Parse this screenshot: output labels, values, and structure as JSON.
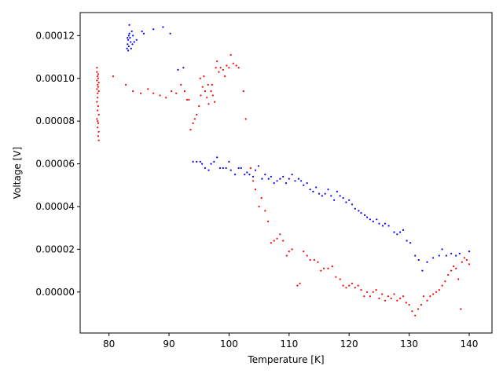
{
  "chart_data": {
    "type": "scatter",
    "title": "",
    "xlabel": "Temperature [K]",
    "ylabel": "Voltage [V]",
    "xlim": [
      75.2,
      143.8
    ],
    "ylim": [
      -1.92e-05,
      0.0001308
    ],
    "grid": false,
    "xticks": [
      80,
      90,
      100,
      110,
      120,
      130,
      140
    ],
    "xtick_labels": [
      "80",
      "90",
      "100",
      "110",
      "120",
      "130",
      "140"
    ],
    "yticks": [
      0,
      2e-05,
      4e-05,
      6e-05,
      8e-05,
      0.0001,
      0.00012
    ],
    "ytick_labels": [
      "0.00000",
      "0.00002",
      "0.00004",
      "0.00006",
      "0.00008",
      "0.00010",
      "0.00012"
    ],
    "series": [
      {
        "color": "#0000ff",
        "points": [
          [
            83.0,
            0.000114
          ],
          [
            83.1,
            0.000116
          ],
          [
            83.2,
            0.000118
          ],
          [
            83.3,
            0.00012
          ],
          [
            83.4,
            0.000121
          ],
          [
            83.5,
            0.000119
          ],
          [
            83.2,
            0.000113
          ],
          [
            83.6,
            0.000117
          ],
          [
            83.8,
            0.000122
          ],
          [
            83.4,
            0.000125
          ],
          [
            84.0,
            0.00012
          ],
          [
            83.1,
            0.000119
          ],
          [
            83.7,
            0.000114
          ],
          [
            83.9,
            0.000116
          ],
          [
            83.3,
            0.000115
          ],
          [
            84.2,
            0.000117
          ],
          [
            84.6,
            0.000118
          ],
          [
            85.5,
            0.000122
          ],
          [
            85.8,
            0.000121
          ],
          [
            87.4,
            0.000123
          ],
          [
            89.0,
            0.000124
          ],
          [
            90.2,
            0.000121
          ],
          [
            91.5,
            0.000104
          ],
          [
            92.4,
            0.000105
          ],
          [
            94.0,
            6.1e-05
          ],
          [
            94.6,
            6.1e-05
          ],
          [
            95.2,
            6.1e-05
          ],
          [
            95.5,
            6e-05
          ],
          [
            96.0,
            5.8e-05
          ],
          [
            96.6,
            5.7e-05
          ],
          [
            97.0,
            6e-05
          ],
          [
            97.5,
            6.1e-05
          ],
          [
            98.0,
            6.3e-05
          ],
          [
            98.5,
            5.8e-05
          ],
          [
            99.0,
            5.8e-05
          ],
          [
            99.5,
            5.8e-05
          ],
          [
            100.0,
            6.1e-05
          ],
          [
            100.3,
            5.7e-05
          ],
          [
            101.0,
            5.5e-05
          ],
          [
            101.6,
            5.8e-05
          ],
          [
            102.0,
            5.8e-05
          ],
          [
            102.6,
            5.5e-05
          ],
          [
            103.0,
            5.6e-05
          ],
          [
            103.4,
            5.5e-05
          ],
          [
            104.0,
            5.4e-05
          ],
          [
            104.4,
            5.7e-05
          ],
          [
            104.9,
            5.9e-05
          ],
          [
            105.5,
            5.3e-05
          ],
          [
            106.0,
            5.5e-05
          ],
          [
            106.6,
            5.3e-05
          ],
          [
            107.0,
            5.4e-05
          ],
          [
            107.5,
            5.1e-05
          ],
          [
            108.0,
            5.2e-05
          ],
          [
            108.5,
            5.3e-05
          ],
          [
            109.0,
            5.4e-05
          ],
          [
            109.5,
            5.1e-05
          ],
          [
            110.0,
            5.3e-05
          ],
          [
            110.5,
            5.5e-05
          ],
          [
            111.0,
            5.2e-05
          ],
          [
            111.6,
            5.3e-05
          ],
          [
            112.0,
            5.2e-05
          ],
          [
            112.4,
            5e-05
          ],
          [
            113.0,
            5.1e-05
          ],
          [
            113.5,
            4.8e-05
          ],
          [
            114.0,
            4.7e-05
          ],
          [
            114.5,
            4.9e-05
          ],
          [
            115.0,
            4.6e-05
          ],
          [
            115.5,
            4.5e-05
          ],
          [
            116.0,
            4.6e-05
          ],
          [
            116.5,
            4.8e-05
          ],
          [
            117.0,
            4.5e-05
          ],
          [
            117.5,
            4.3e-05
          ],
          [
            118.0,
            4.7e-05
          ],
          [
            118.5,
            4.5e-05
          ],
          [
            119.0,
            4.4e-05
          ],
          [
            119.5,
            4.2e-05
          ],
          [
            120.0,
            4.3e-05
          ],
          [
            120.5,
            4.1e-05
          ],
          [
            121.0,
            3.9e-05
          ],
          [
            121.6,
            3.8e-05
          ],
          [
            122.0,
            3.7e-05
          ],
          [
            122.6,
            3.6e-05
          ],
          [
            123.0,
            3.5e-05
          ],
          [
            123.5,
            3.4e-05
          ],
          [
            124.0,
            3.3e-05
          ],
          [
            124.6,
            3.4e-05
          ],
          [
            125.0,
            3.2e-05
          ],
          [
            125.6,
            3.1e-05
          ],
          [
            126.0,
            3.2e-05
          ],
          [
            126.6,
            3.1e-05
          ],
          [
            127.5,
            2.8e-05
          ],
          [
            128.0,
            2.7e-05
          ],
          [
            128.5,
            2.8e-05
          ],
          [
            129.0,
            2.9e-05
          ],
          [
            129.6,
            2.4e-05
          ],
          [
            130.2,
            2.3e-05
          ],
          [
            131.0,
            1.7e-05
          ],
          [
            131.6,
            1.5e-05
          ],
          [
            132.2,
            1e-05
          ],
          [
            133.0,
            1.4e-05
          ],
          [
            134.0,
            1.6e-05
          ],
          [
            135.0,
            1.7e-05
          ],
          [
            135.5,
            2e-05
          ],
          [
            136.2,
            1.7e-05
          ],
          [
            137.0,
            1.8e-05
          ],
          [
            137.8,
            1.7e-05
          ],
          [
            138.4,
            1.8e-05
          ],
          [
            140.0,
            1.9e-05
          ]
        ]
      },
      {
        "color": "#ff0000",
        "points": [
          [
            78.0,
            0.000103
          ],
          [
            78.1,
            0.000101
          ],
          [
            78.2,
            0.0001
          ],
          [
            78.0,
            9.9e-05
          ],
          [
            78.3,
            9.8e-05
          ],
          [
            78.1,
            9.7e-05
          ],
          [
            78.2,
            9.6e-05
          ],
          [
            78.0,
            9.5e-05
          ],
          [
            78.3,
            9.4e-05
          ],
          [
            78.1,
            9.3e-05
          ],
          [
            78.2,
            0.000102
          ],
          [
            78.0,
            0.000105
          ],
          [
            78.1,
            9.1e-05
          ],
          [
            78.0,
            8.9e-05
          ],
          [
            78.2,
            8.7e-05
          ],
          [
            78.1,
            8.5e-05
          ],
          [
            78.3,
            8.3e-05
          ],
          [
            78.0,
            8.1e-05
          ],
          [
            78.2,
            7.9e-05
          ],
          [
            78.1,
            7.7e-05
          ],
          [
            78.3,
            7.5e-05
          ],
          [
            78.2,
            7.3e-05
          ],
          [
            78.3,
            7.1e-05
          ],
          [
            78.1,
            8e-05
          ],
          [
            80.7,
            0.000101
          ],
          [
            82.8,
            9.7e-05
          ],
          [
            84.0,
            9.4e-05
          ],
          [
            85.3,
            9.3e-05
          ],
          [
            86.5,
            9.5e-05
          ],
          [
            87.4,
            9.3e-05
          ],
          [
            88.5,
            9.2e-05
          ],
          [
            89.5,
            9.1e-05
          ],
          [
            90.4,
            9.4e-05
          ],
          [
            91.2,
            9.3e-05
          ],
          [
            92.0,
            9.7e-05
          ],
          [
            92.6,
            9.4e-05
          ],
          [
            93.0,
            9e-05
          ],
          [
            93.3,
            9e-05
          ],
          [
            93.6,
            7.6e-05
          ],
          [
            94.0,
            7.9e-05
          ],
          [
            94.3,
            8.1e-05
          ],
          [
            94.6,
            8.3e-05
          ],
          [
            95.0,
            8.7e-05
          ],
          [
            95.3,
            9.2e-05
          ],
          [
            95.6,
            9.6e-05
          ],
          [
            96.0,
            9.4e-05
          ],
          [
            96.3,
            9.1e-05
          ],
          [
            96.6,
            8.8e-05
          ],
          [
            97.0,
            9.4e-05
          ],
          [
            97.3,
            9.2e-05
          ],
          [
            97.6,
            8.9e-05
          ],
          [
            95.2,
            0.0001
          ],
          [
            95.8,
            0.000101
          ],
          [
            96.5,
            9.7e-05
          ],
          [
            97.2,
            9.7e-05
          ],
          [
            97.8,
            0.000105
          ],
          [
            98.0,
            0.000108
          ],
          [
            98.3,
            0.000103
          ],
          [
            98.6,
            0.000105
          ],
          [
            99.0,
            0.000104
          ],
          [
            99.3,
            0.000101
          ],
          [
            99.6,
            0.000106
          ],
          [
            100.0,
            0.000105
          ],
          [
            100.3,
            0.000111
          ],
          [
            100.7,
            0.000107
          ],
          [
            101.2,
            0.000106
          ],
          [
            101.6,
            0.000105
          ],
          [
            102.4,
            9.4e-05
          ],
          [
            102.8,
            8.1e-05
          ],
          [
            103.6,
            5.8e-05
          ],
          [
            104.0,
            5.2e-05
          ],
          [
            104.4,
            4.8e-05
          ],
          [
            105.0,
            4e-05
          ],
          [
            105.4,
            4.4e-05
          ],
          [
            106.0,
            3.8e-05
          ],
          [
            106.5,
            3.3e-05
          ],
          [
            107.0,
            2.3e-05
          ],
          [
            107.5,
            2.4e-05
          ],
          [
            108.0,
            2.5e-05
          ],
          [
            108.5,
            2.7e-05
          ],
          [
            109.0,
            2.4e-05
          ],
          [
            109.6,
            1.7e-05
          ],
          [
            110.0,
            1.9e-05
          ],
          [
            110.5,
            2e-05
          ],
          [
            111.4,
            3e-06
          ],
          [
            111.8,
            4e-06
          ],
          [
            112.4,
            1.9e-05
          ],
          [
            113.0,
            1.7e-05
          ],
          [
            113.5,
            1.5e-05
          ],
          [
            114.2,
            1.5e-05
          ],
          [
            114.8,
            1.4e-05
          ],
          [
            115.3,
            1e-05
          ],
          [
            115.8,
            1.1e-05
          ],
          [
            116.5,
            1.1e-05
          ],
          [
            117.2,
            1.2e-05
          ],
          [
            117.8,
            7e-06
          ],
          [
            118.5,
            6e-06
          ],
          [
            119.0,
            3e-06
          ],
          [
            119.5,
            2e-06
          ],
          [
            120.0,
            3e-06
          ],
          [
            120.5,
            4e-06
          ],
          [
            121.0,
            2e-06
          ],
          [
            121.5,
            3e-06
          ],
          [
            122.0,
            1e-06
          ],
          [
            122.5,
            -2e-06
          ],
          [
            123.0,
            0.0
          ],
          [
            123.5,
            -2e-06
          ],
          [
            124.0,
            0.0
          ],
          [
            124.5,
            1e-06
          ],
          [
            125.0,
            -3e-06
          ],
          [
            125.5,
            -1e-06
          ],
          [
            126.0,
            -4e-06
          ],
          [
            126.5,
            -2e-06
          ],
          [
            127.0,
            -3e-06
          ],
          [
            127.5,
            -1e-06
          ],
          [
            128.0,
            -4e-06
          ],
          [
            128.5,
            -3e-06
          ],
          [
            129.0,
            -2e-06
          ],
          [
            129.5,
            -5e-06
          ],
          [
            130.0,
            -6e-06
          ],
          [
            130.5,
            -9e-06
          ],
          [
            131.0,
            -1.1e-05
          ],
          [
            131.5,
            -8e-06
          ],
          [
            132.0,
            -6e-06
          ],
          [
            132.4,
            -2e-06
          ],
          [
            133.0,
            -4e-06
          ],
          [
            133.5,
            -2e-06
          ],
          [
            134.0,
            -1e-06
          ],
          [
            134.5,
            0.0
          ],
          [
            135.0,
            1e-06
          ],
          [
            135.5,
            3e-06
          ],
          [
            136.0,
            5e-06
          ],
          [
            136.5,
            8e-06
          ],
          [
            137.0,
            1e-05
          ],
          [
            137.4,
            1.2e-05
          ],
          [
            137.8,
            1.1e-05
          ],
          [
            138.2,
            6e-06
          ],
          [
            138.6,
            -8e-06
          ],
          [
            138.8,
            1.4e-05
          ],
          [
            139.2,
            1.6e-05
          ],
          [
            139.6,
            1.5e-05
          ],
          [
            140.0,
            1.3e-05
          ]
        ]
      }
    ]
  }
}
